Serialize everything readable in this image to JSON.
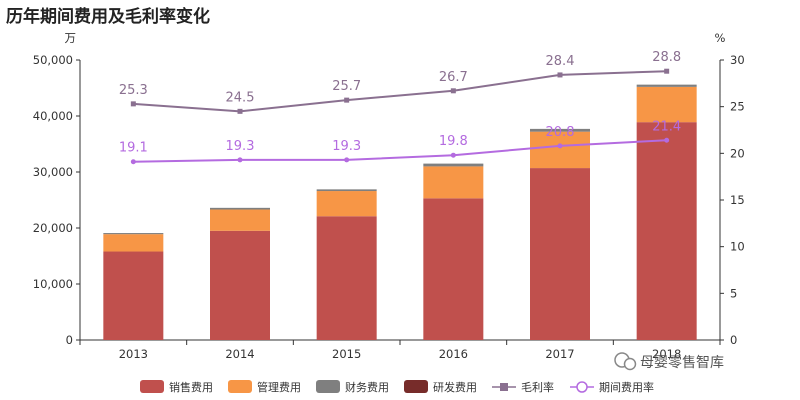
{
  "title": "历年期间费用及毛利率变化",
  "watermark": "母婴零售智库",
  "chart_data": {
    "type": "bar",
    "stacked": true,
    "categories": [
      "2013",
      "2014",
      "2015",
      "2016",
      "2017",
      "2018"
    ],
    "y_unit": "万",
    "y2_unit": "%",
    "ylim": [
      0,
      50000
    ],
    "y_ticks": [
      "0",
      "10,000",
      "20,000",
      "30,000",
      "40,000",
      "50,000"
    ],
    "y2lim": [
      0,
      30
    ],
    "y2_ticks": [
      "0",
      "5",
      "10",
      "15",
      "20",
      "25",
      "30"
    ],
    "series": [
      {
        "name": "销售费用",
        "kind": "bar",
        "color": "#c0504d",
        "values": [
          15800,
          19500,
          22100,
          25300,
          30700,
          38900
        ]
      },
      {
        "name": "管理费用",
        "kind": "bar",
        "color": "#f79646",
        "values": [
          3100,
          3800,
          4500,
          5700,
          6500,
          6300
        ]
      },
      {
        "name": "财务费用",
        "kind": "bar",
        "color": "#7f7f7f",
        "values": [
          200,
          300,
          300,
          500,
          500,
          400
        ]
      },
      {
        "name": "研发费用",
        "kind": "bar",
        "color": "#772c2a",
        "values": [
          0,
          0,
          0,
          0,
          0,
          0
        ]
      },
      {
        "name": "毛利率",
        "kind": "line",
        "axis": "right",
        "color": "#8a7090",
        "marker": "square",
        "values": [
          25.3,
          24.5,
          25.7,
          26.7,
          28.4,
          28.8
        ],
        "labels": [
          "25.3",
          "24.5",
          "25.7",
          "26.7",
          "28.4",
          "28.8"
        ]
      },
      {
        "name": "期间费用率",
        "kind": "line",
        "axis": "right",
        "color": "#b46be0",
        "marker": "circle",
        "values": [
          19.1,
          19.3,
          19.3,
          19.8,
          20.8,
          21.4
        ],
        "labels": [
          "19.1",
          "19.3",
          "19.3",
          "19.8",
          "20.8",
          "21.4"
        ]
      }
    ],
    "legend_position": "bottom",
    "grid": false
  }
}
